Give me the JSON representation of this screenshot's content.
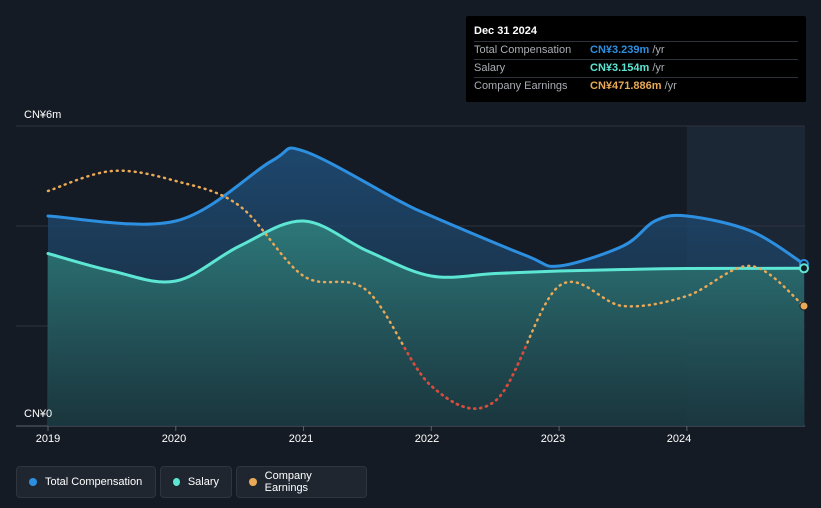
{
  "chart_data": {
    "type": "line",
    "x": [
      "2019-01",
      "2019-07",
      "2020-01",
      "2020-07",
      "2021-01",
      "2021-07",
      "2022-01",
      "2022-07",
      "2023-01",
      "2023-07",
      "2024-01",
      "2024-07",
      "2024-12"
    ],
    "x_ticks": [
      "2019",
      "2020",
      "2021",
      "2022",
      "2023",
      "2024"
    ],
    "y_ticks": [
      "CN¥0",
      "CN¥6m"
    ],
    "ylim": [
      0,
      6
    ],
    "unit": "CN¥m",
    "series": [
      {
        "name": "Total Compensation",
        "color": "#2d8fe0",
        "points": [
          [
            "2019-01",
            4.2
          ],
          [
            "2020-01",
            4.1
          ],
          [
            "2020-10",
            5.3
          ],
          [
            "2021-01",
            5.5
          ],
          [
            "2021-10",
            4.5
          ],
          [
            "2022-01",
            4.2
          ],
          [
            "2022-10",
            3.4
          ],
          [
            "2023-01",
            3.2
          ],
          [
            "2023-07",
            3.6
          ],
          [
            "2023-10",
            4.1
          ],
          [
            "2024-01",
            4.2
          ],
          [
            "2024-07",
            3.9
          ],
          [
            "2024-12",
            3.239
          ]
        ]
      },
      {
        "name": "Salary",
        "color": "#5ce6d3",
        "points": [
          [
            "2019-01",
            3.45
          ],
          [
            "2019-07",
            3.1
          ],
          [
            "2020-01",
            2.9
          ],
          [
            "2020-07",
            3.6
          ],
          [
            "2021-01",
            4.1
          ],
          [
            "2021-07",
            3.5
          ],
          [
            "2022-01",
            3.0
          ],
          [
            "2022-07",
            3.05
          ],
          [
            "2023-01",
            3.1
          ],
          [
            "2023-07",
            3.13
          ],
          [
            "2024-01",
            3.15
          ],
          [
            "2024-12",
            3.154
          ]
        ]
      },
      {
        "name": "Company Earnings",
        "color": "#e9a957",
        "negative_color": "#e0453b",
        "style": "dotted",
        "points": [
          [
            "2019-01",
            4.7
          ],
          [
            "2019-07",
            5.1
          ],
          [
            "2020-01",
            4.9
          ],
          [
            "2020-07",
            4.4
          ],
          [
            "2021-01",
            3.0
          ],
          [
            "2021-07",
            2.7
          ],
          [
            "2022-01",
            0.8
          ],
          [
            "2022-07",
            0.5
          ],
          [
            "2023-01",
            2.8
          ],
          [
            "2023-07",
            2.4
          ],
          [
            "2024-01",
            2.6
          ],
          [
            "2024-07",
            3.2
          ],
          [
            "2024-12",
            2.4
          ]
        ]
      }
    ],
    "highlight_from": "2024-01"
  },
  "tooltip": {
    "date": "Dec 31 2024",
    "rows": [
      {
        "label": "Total Compensation",
        "value": "CN¥3.239m",
        "unit": "/yr",
        "color": "#2d8fe0"
      },
      {
        "label": "Salary",
        "value": "CN¥3.154m",
        "unit": "/yr",
        "color": "#5ce6d3"
      },
      {
        "label": "Company Earnings",
        "value": "CN¥471.886m",
        "unit": "/yr",
        "color": "#e9a957"
      }
    ]
  },
  "legend": [
    {
      "label": "Total Compensation",
      "color": "#2d8fe0"
    },
    {
      "label": "Salary",
      "color": "#5ce6d3"
    },
    {
      "label": "Company Earnings",
      "color": "#e9a957"
    }
  ]
}
